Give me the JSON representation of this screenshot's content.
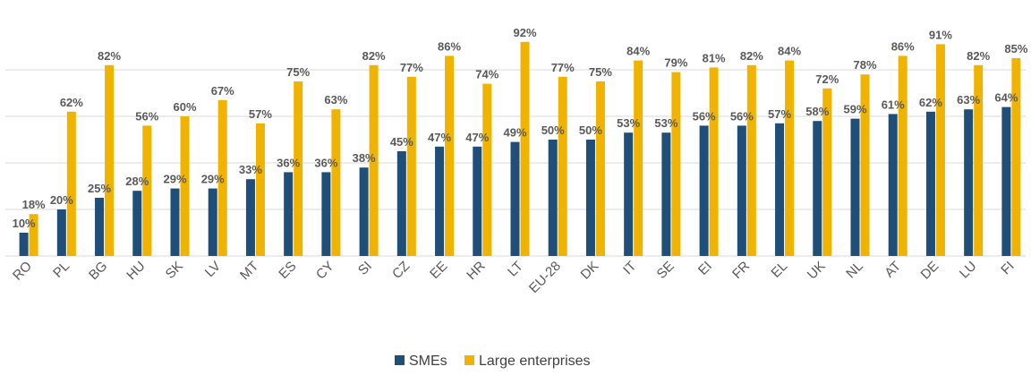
{
  "chart_data": {
    "type": "bar",
    "categories": [
      "RO",
      "PL",
      "BG",
      "HU",
      "SK",
      "LV",
      "MT",
      "ES",
      "CY",
      "SI",
      "CZ",
      "EE",
      "HR",
      "LT",
      "EU-28",
      "DK",
      "IT",
      "SE",
      "EI",
      "FR",
      "EL",
      "UK",
      "NL",
      "AT",
      "DE",
      "LU",
      "FI"
    ],
    "series": [
      {
        "name": "SMEs",
        "values": [
          10,
          20,
          25,
          28,
          29,
          29,
          33,
          36,
          36,
          38,
          45,
          47,
          47,
          49,
          50,
          50,
          53,
          53,
          56,
          56,
          57,
          58,
          59,
          61,
          62,
          63,
          64
        ],
        "color": "#1f4e79"
      },
      {
        "name": "Large enterprises",
        "values": [
          18,
          62,
          82,
          56,
          60,
          67,
          57,
          75,
          63,
          82,
          77,
          86,
          74,
          92,
          77,
          75,
          84,
          79,
          81,
          82,
          84,
          72,
          78,
          86,
          91,
          82,
          85
        ],
        "color": "#f0b400"
      }
    ],
    "value_label_format": "{v}%",
    "ylim": [
      0,
      100
    ],
    "gridlines": [
      20,
      40,
      60,
      80
    ],
    "grid": true,
    "legend_position": "bottom-center",
    "axis_color": "#d9d9d9"
  }
}
